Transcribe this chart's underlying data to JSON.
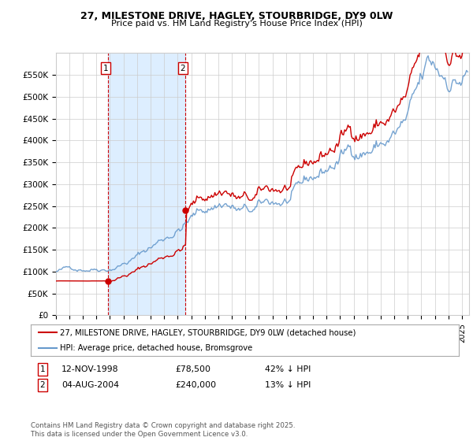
{
  "title": "27, MILESTONE DRIVE, HAGLEY, STOURBRIDGE, DY9 0LW",
  "subtitle": "Price paid vs. HM Land Registry's House Price Index (HPI)",
  "ylabel_ticks": [
    "£0",
    "£50K",
    "£100K",
    "£150K",
    "£200K",
    "£250K",
    "£300K",
    "£350K",
    "£400K",
    "£450K",
    "£500K",
    "£550K"
  ],
  "ylim": [
    0,
    600000
  ],
  "xlim_start": 1995.0,
  "xlim_end": 2025.5,
  "sale1_date": 1998.87,
  "sale1_price": 78500,
  "sale1_label": "1",
  "sale2_date": 2004.59,
  "sale2_price": 240000,
  "sale2_label": "2",
  "red_color": "#cc0000",
  "blue_color": "#6699cc",
  "shaded_color": "#ddeeff",
  "legend1": "27, MILESTONE DRIVE, HAGLEY, STOURBRIDGE, DY9 0LW (detached house)",
  "legend2": "HPI: Average price, detached house, Bromsgrove",
  "annotation1_num": "1",
  "annotation1_date": "12-NOV-1998",
  "annotation1_price": "£78,500",
  "annotation1_hpi": "42% ↓ HPI",
  "annotation2_num": "2",
  "annotation2_date": "04-AUG-2004",
  "annotation2_price": "£240,000",
  "annotation2_hpi": "13% ↓ HPI",
  "footer": "Contains HM Land Registry data © Crown copyright and database right 2025.\nThis data is licensed under the Open Government Licence v3.0.",
  "background_color": "#ffffff",
  "grid_color": "#cccccc"
}
